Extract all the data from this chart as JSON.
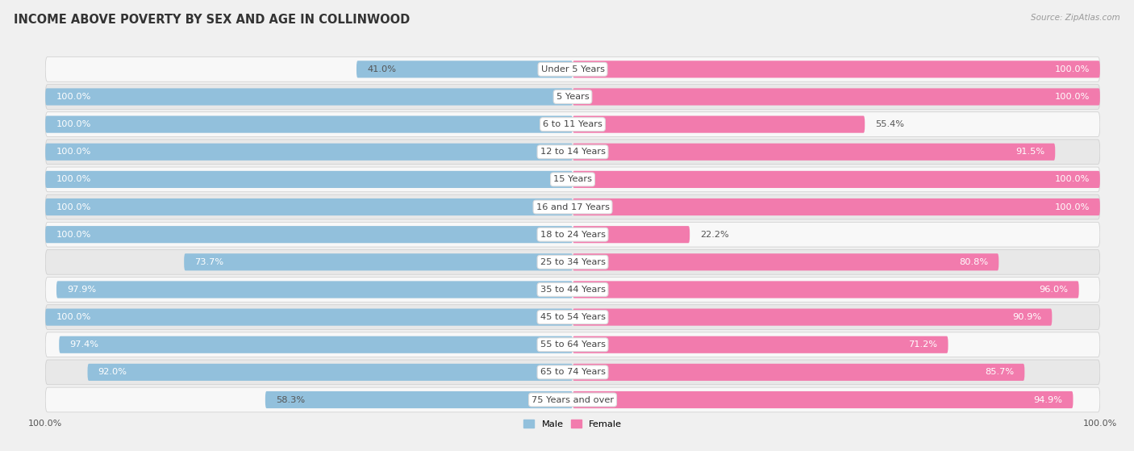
{
  "title": "INCOME ABOVE POVERTY BY SEX AND AGE IN COLLINWOOD",
  "source": "Source: ZipAtlas.com",
  "categories": [
    "Under 5 Years",
    "5 Years",
    "6 to 11 Years",
    "12 to 14 Years",
    "15 Years",
    "16 and 17 Years",
    "18 to 24 Years",
    "25 to 34 Years",
    "35 to 44 Years",
    "45 to 54 Years",
    "55 to 64 Years",
    "65 to 74 Years",
    "75 Years and over"
  ],
  "male_values": [
    41.0,
    100.0,
    100.0,
    100.0,
    100.0,
    100.0,
    100.0,
    73.7,
    97.9,
    100.0,
    97.4,
    92.0,
    58.3
  ],
  "female_values": [
    100.0,
    100.0,
    55.4,
    91.5,
    100.0,
    100.0,
    22.2,
    80.8,
    96.0,
    90.9,
    71.2,
    85.7,
    94.9
  ],
  "male_color": "#92C0DC",
  "female_color": "#F27BAD",
  "male_label": "Male",
  "female_label": "Female",
  "bg_color": "#f0f0f0",
  "row_color_even": "#f8f8f8",
  "row_color_odd": "#e8e8e8",
  "bar_height": 0.62,
  "x_left_label": "100.0%",
  "x_right_label": "100.0%",
  "title_fontsize": 10.5,
  "label_fontsize": 8.2,
  "tick_fontsize": 8,
  "max_val": 100.0
}
